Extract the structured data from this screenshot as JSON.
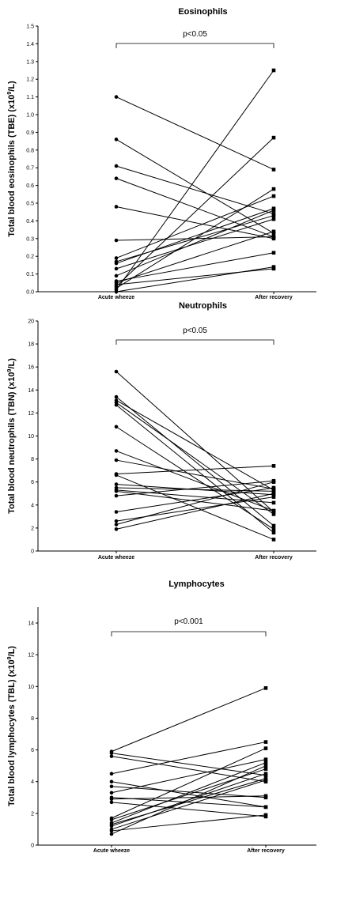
{
  "chart_data": [
    {
      "type": "line",
      "title": "Eosinophils",
      "ylabel": "Total blood eosinophils (TBE) (x10⁹/L)",
      "categories": [
        "Acute wheeze",
        "After recovery"
      ],
      "ylim": [
        0,
        1.5
      ],
      "yticks": [
        "0.0",
        "0.1",
        "0.2",
        "0.3",
        "0.4",
        "0.5",
        "0.6",
        "0.7",
        "0.8",
        "0.9",
        "1.0",
        "1.1",
        "1.2",
        "1.3",
        "1.4",
        "1.5"
      ],
      "significance": "p<0.05",
      "pairs": [
        [
          1.1,
          0.69
        ],
        [
          0.86,
          0.33
        ],
        [
          0.71,
          0.44
        ],
        [
          0.64,
          0.31
        ],
        [
          0.48,
          0.3
        ],
        [
          0.29,
          0.31
        ],
        [
          0.19,
          0.54
        ],
        [
          0.17,
          0.43
        ],
        [
          0.16,
          0.47
        ],
        [
          0.13,
          0.41
        ],
        [
          0.09,
          0.46
        ],
        [
          0.06,
          0.22
        ],
        [
          0.05,
          0.34
        ],
        [
          0.04,
          0.13
        ],
        [
          0.03,
          0.87
        ],
        [
          0.02,
          0.58
        ],
        [
          0.01,
          1.25
        ],
        [
          0.0,
          0.14
        ]
      ]
    },
    {
      "type": "line",
      "title": "Neutrophils",
      "ylabel": "Total blood neutrophils (TBN)  (x10⁹/L)",
      "categories": [
        "Acute wheeze",
        "After recovery"
      ],
      "ylim": [
        0,
        20
      ],
      "yticks": [
        "0",
        "2",
        "4",
        "6",
        "8",
        "10",
        "12",
        "14",
        "16",
        "18",
        "20"
      ],
      "significance": "p<0.05",
      "pairs": [
        [
          15.6,
          3.4
        ],
        [
          13.4,
          2.2
        ],
        [
          13.1,
          5.3
        ],
        [
          12.9,
          3.2
        ],
        [
          12.7,
          1.6
        ],
        [
          10.8,
          1.9
        ],
        [
          8.7,
          3.5
        ],
        [
          7.9,
          5.4
        ],
        [
          6.7,
          7.4
        ],
        [
          6.6,
          1.0
        ],
        [
          5.8,
          4.9
        ],
        [
          5.5,
          5.2
        ],
        [
          5.3,
          4.2
        ],
        [
          5.2,
          3.5
        ],
        [
          4.8,
          6.1
        ],
        [
          3.4,
          5.5
        ],
        [
          2.6,
          4.7
        ],
        [
          2.3,
          6.0
        ],
        [
          1.9,
          5.0
        ]
      ]
    },
    {
      "type": "line",
      "title": "Lymphocytes",
      "ylabel": "Total blood lymphocytes (TBL) (x10⁹/L)",
      "categories": [
        "Acute wheeze",
        "After recovery"
      ],
      "ylim": [
        0,
        15
      ],
      "yticks": [
        "0",
        "2",
        "4",
        "6",
        "8",
        "10",
        "12",
        "14"
      ],
      "significance": "p<0.001",
      "pairs": [
        [
          5.9,
          9.9
        ],
        [
          5.8,
          4.4
        ],
        [
          5.6,
          4.0
        ],
        [
          4.5,
          6.5
        ],
        [
          4.0,
          2.4
        ],
        [
          3.7,
          3.0
        ],
        [
          3.3,
          5.4
        ],
        [
          3.0,
          2.4
        ],
        [
          2.9,
          3.1
        ],
        [
          2.7,
          1.8
        ],
        [
          1.7,
          6.1
        ],
        [
          1.6,
          4.8
        ],
        [
          1.4,
          5.2
        ],
        [
          1.3,
          4.2
        ],
        [
          1.2,
          4.5
        ],
        [
          1.0,
          4.1
        ],
        [
          0.9,
          1.9
        ],
        [
          0.7,
          5.0
        ]
      ]
    }
  ]
}
